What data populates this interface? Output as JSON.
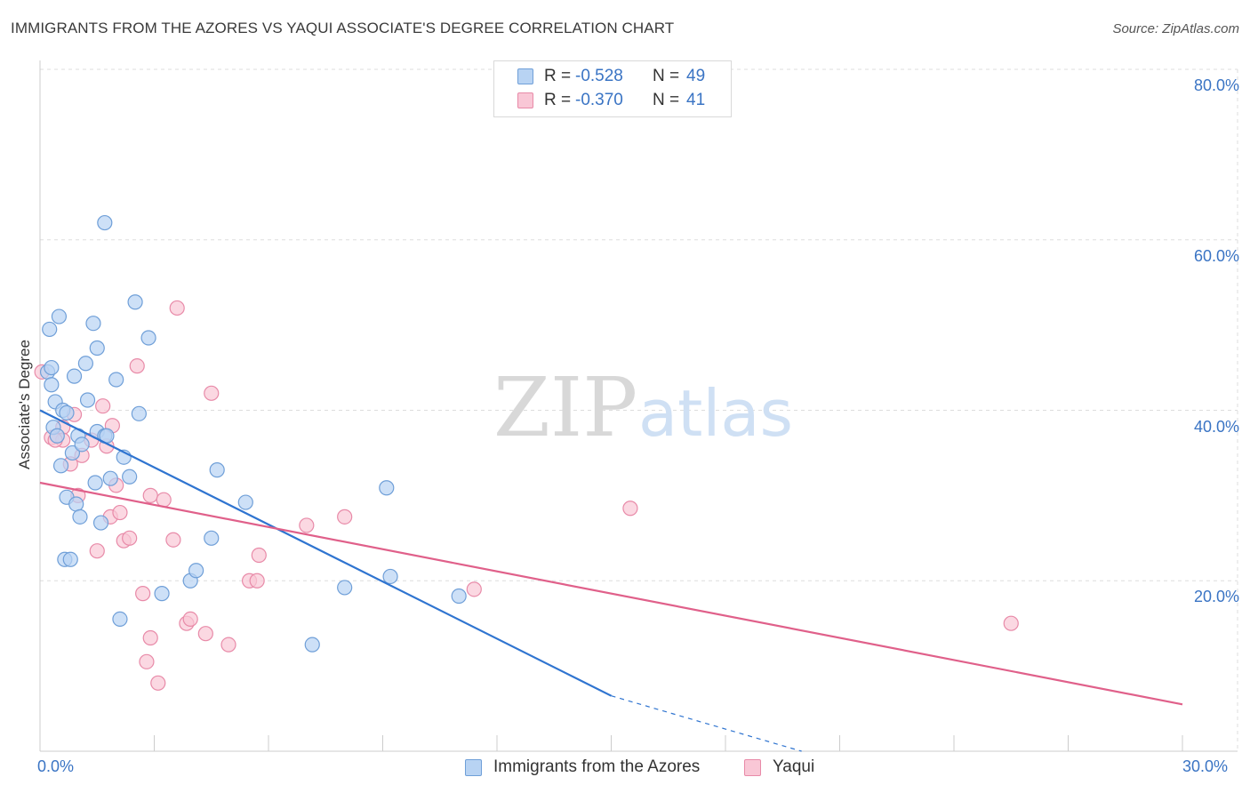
{
  "title": "IMMIGRANTS FROM THE AZORES VS YAQUI ASSOCIATE'S DEGREE CORRELATION CHART",
  "source": "Source: ZipAtlas.com",
  "watermark": {
    "zip": "ZIP",
    "atlas": "atlas"
  },
  "legend": {
    "rows": [
      {
        "r_label": "R =",
        "r_value": "-0.528",
        "n_label": "N =",
        "n_value": "49"
      },
      {
        "r_label": "R =",
        "r_value": "-0.370",
        "n_label": "N =",
        "n_value": "41"
      }
    ]
  },
  "bottom_legend": {
    "series1": "Immigrants from the Azores",
    "series2": "Yaqui"
  },
  "colors": {
    "blue_fill": "#b8d3f3",
    "blue_stroke": "#6f9fd8",
    "blue_line": "#2f74d0",
    "pink_fill": "#f9c7d6",
    "pink_stroke": "#e88aa8",
    "pink_line": "#e0608a",
    "tick_text": "#3a74c4",
    "grid": "#dddddd"
  },
  "chart_data": {
    "type": "scatter",
    "title": "IMMIGRANTS FROM THE AZORES VS YAQUI ASSOCIATE'S DEGREE CORRELATION CHART",
    "xlabel": "",
    "ylabel": "Associate's Degree",
    "xlim": [
      0,
      30
    ],
    "ylim": [
      0,
      80
    ],
    "x_tick_labels": [
      "0.0%",
      "30.0%"
    ],
    "y_tick_labels": [
      "20.0%",
      "40.0%",
      "60.0%",
      "80.0%"
    ],
    "y_ticks": [
      20,
      40,
      60,
      80
    ],
    "grid": true,
    "legend_position": "top-center",
    "series": [
      {
        "name": "Immigrants from the Azores",
        "r": -0.528,
        "n": 49,
        "points": [
          [
            0.2,
            44.5
          ],
          [
            0.25,
            49.5
          ],
          [
            0.3,
            43.0
          ],
          [
            0.35,
            38.0
          ],
          [
            0.4,
            41.0
          ],
          [
            0.45,
            37.0
          ],
          [
            0.5,
            51.0
          ],
          [
            0.55,
            33.5
          ],
          [
            0.6,
            40.0
          ],
          [
            0.65,
            22.5
          ],
          [
            0.7,
            39.7
          ],
          [
            0.7,
            29.8
          ],
          [
            0.8,
            22.5
          ],
          [
            0.85,
            35.0
          ],
          [
            0.9,
            44.0
          ],
          [
            0.95,
            29.0
          ],
          [
            1.0,
            37.0
          ],
          [
            1.05,
            27.5
          ],
          [
            1.1,
            36.0
          ],
          [
            1.2,
            45.5
          ],
          [
            1.25,
            41.2
          ],
          [
            1.4,
            50.2
          ],
          [
            1.45,
            31.5
          ],
          [
            1.5,
            47.3
          ],
          [
            1.5,
            37.5
          ],
          [
            1.6,
            26.8
          ],
          [
            1.7,
            37.0
          ],
          [
            1.85,
            32.0
          ],
          [
            2.0,
            43.6
          ],
          [
            2.1,
            15.5
          ],
          [
            2.2,
            34.5
          ],
          [
            2.35,
            32.2
          ],
          [
            2.5,
            52.7
          ],
          [
            2.6,
            39.6
          ],
          [
            2.85,
            48.5
          ],
          [
            3.2,
            18.5
          ],
          [
            3.95,
            20.0
          ],
          [
            4.1,
            21.2
          ],
          [
            4.5,
            25.0
          ],
          [
            4.65,
            33.0
          ],
          [
            5.4,
            29.2
          ],
          [
            7.15,
            12.5
          ],
          [
            8.0,
            19.2
          ],
          [
            9.1,
            30.9
          ],
          [
            9.2,
            20.5
          ],
          [
            11.0,
            18.2
          ],
          [
            1.7,
            62.0
          ],
          [
            0.3,
            45.0
          ],
          [
            1.75,
            37.0
          ]
        ],
        "trend": {
          "x0": 0,
          "y0": 40.0,
          "x1": 15.0,
          "y1": 6.5,
          "dash_to_x": 20.0
        }
      },
      {
        "name": "Yaqui",
        "r": -0.37,
        "n": 41,
        "points": [
          [
            0.05,
            44.5
          ],
          [
            0.3,
            36.8
          ],
          [
            0.6,
            38.0
          ],
          [
            0.6,
            36.5
          ],
          [
            0.8,
            33.7
          ],
          [
            0.9,
            39.5
          ],
          [
            1.0,
            30.0
          ],
          [
            1.1,
            34.7
          ],
          [
            1.35,
            36.5
          ],
          [
            1.5,
            23.5
          ],
          [
            1.65,
            40.5
          ],
          [
            1.75,
            35.8
          ],
          [
            1.85,
            27.5
          ],
          [
            1.9,
            38.2
          ],
          [
            2.0,
            31.2
          ],
          [
            2.1,
            28.0
          ],
          [
            2.2,
            24.7
          ],
          [
            2.35,
            25.0
          ],
          [
            2.55,
            45.2
          ],
          [
            2.7,
            18.5
          ],
          [
            2.8,
            10.5
          ],
          [
            2.9,
            13.3
          ],
          [
            2.9,
            30.0
          ],
          [
            3.1,
            8.0
          ],
          [
            3.25,
            29.5
          ],
          [
            3.5,
            24.8
          ],
          [
            3.6,
            52.0
          ],
          [
            3.85,
            15.0
          ],
          [
            3.95,
            15.5
          ],
          [
            4.35,
            13.8
          ],
          [
            4.5,
            42.0
          ],
          [
            4.95,
            12.5
          ],
          [
            5.5,
            20.0
          ],
          [
            5.7,
            20.0
          ],
          [
            5.75,
            23.0
          ],
          [
            7.0,
            26.5
          ],
          [
            8.0,
            27.5
          ],
          [
            11.4,
            19.0
          ],
          [
            15.5,
            28.5
          ],
          [
            25.5,
            15.0
          ],
          [
            0.4,
            36.5
          ]
        ],
        "trend": {
          "x0": 0,
          "y0": 31.5,
          "x1": 30.0,
          "y1": 5.5
        }
      }
    ]
  }
}
